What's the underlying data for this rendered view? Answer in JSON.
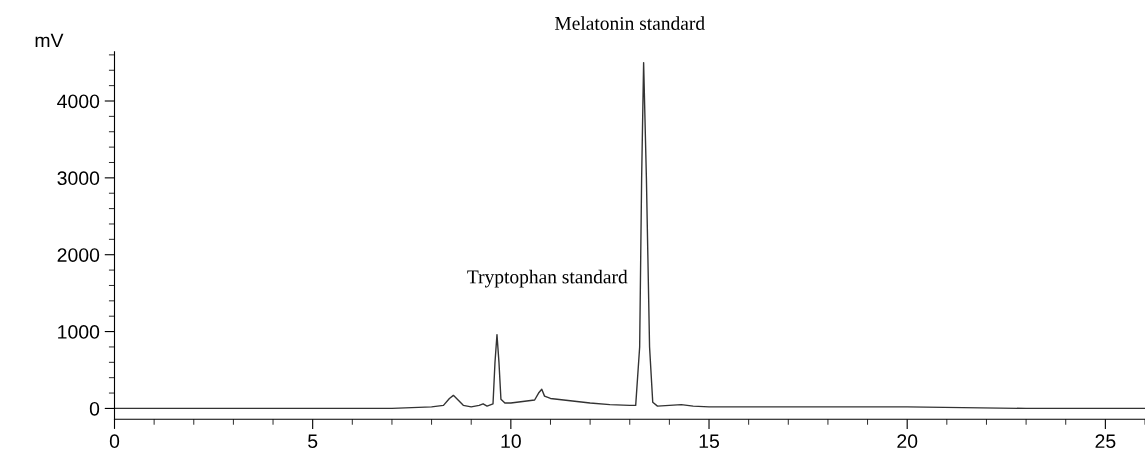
{
  "chart_data": {
    "type": "line",
    "ylabel": "mV",
    "annotations": [
      "Melatonin standard",
      "Tryptophan standard"
    ],
    "xlim": [
      0,
      26
    ],
    "ylim": [
      -140,
      4640
    ],
    "xticks": [
      0,
      5,
      10,
      15,
      20,
      25
    ],
    "yticks": [
      0,
      1000,
      2000,
      3000,
      4000
    ],
    "grid": false,
    "legend": false,
    "marker": "none",
    "line_style": "solid",
    "series": [
      {
        "color": "#333333",
        "x": [
          0,
          2,
          5,
          7,
          8.0,
          8.3,
          8.45,
          8.55,
          8.65,
          8.8,
          9.0,
          9.2,
          9.3,
          9.4,
          9.55,
          9.6,
          9.65,
          9.7,
          9.75,
          9.85,
          10.0,
          10.3,
          10.6,
          10.7,
          10.78,
          10.85,
          11.0,
          11.5,
          12.0,
          12.5,
          13.0,
          13.15,
          13.25,
          13.3,
          13.35,
          13.42,
          13.5,
          13.58,
          13.7,
          14.0,
          14.3,
          14.6,
          15,
          17,
          20,
          23,
          26
        ],
        "values": [
          0,
          0,
          0,
          0,
          20,
          40,
          130,
          170,
          120,
          40,
          20,
          40,
          60,
          30,
          60,
          600,
          960,
          600,
          120,
          70,
          70,
          90,
          110,
          200,
          250,
          160,
          130,
          100,
          70,
          50,
          40,
          40,
          800,
          3000,
          4500,
          3000,
          800,
          80,
          30,
          40,
          50,
          30,
          20,
          20,
          20,
          0,
          0
        ]
      }
    ]
  }
}
